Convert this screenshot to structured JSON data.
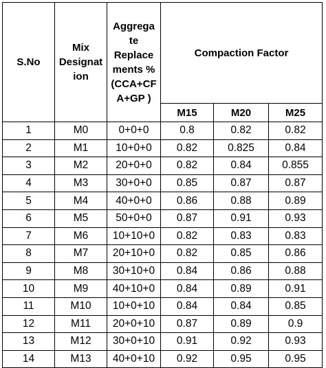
{
  "table": {
    "headers": {
      "sno": "S.No",
      "mix_lines": [
        "Mix",
        "Designat",
        "ion"
      ],
      "aggregate_lines": [
        "Aggrega",
        "te",
        "Replace",
        "ments %",
        "(CCA+CF",
        "A+GP )"
      ],
      "compaction": "Compaction Factor",
      "grades": [
        "M15",
        "M20",
        "M25"
      ]
    },
    "rows": [
      [
        "1",
        "M0",
        "0+0+0",
        "0.8",
        "0.82",
        "0.82"
      ],
      [
        "2",
        "M1",
        "10+0+0",
        "0.82",
        "0.825",
        "0.84"
      ],
      [
        "3",
        "M2",
        "20+0+0",
        "0.82",
        "0.84",
        "0.855"
      ],
      [
        "4",
        "M3",
        "30+0+0",
        "0.85",
        "0.87",
        "0.87"
      ],
      [
        "5",
        "M4",
        "40+0+0",
        "0.86",
        "0.88",
        "0.89"
      ],
      [
        "6",
        "M5",
        "50+0+0",
        "0.87",
        "0.91",
        "0.93"
      ],
      [
        "7",
        "M6",
        "10+10+0",
        "0.82",
        "0.83",
        "0.83"
      ],
      [
        "8",
        "M7",
        "20+10+0",
        "0.82",
        "0.85",
        "0.86"
      ],
      [
        "9",
        "M8",
        "30+10+0",
        "0.84",
        "0.86",
        "0.88"
      ],
      [
        "10",
        "M9",
        "40+10+0",
        "0.84",
        "0.89",
        "0.91"
      ],
      [
        "11",
        "M10",
        "10+0+10",
        "0.84",
        "0.84",
        "0.85"
      ],
      [
        "12",
        "M11",
        "20+0+10",
        "0.87",
        "0.89",
        "0.9"
      ],
      [
        "13",
        "M12",
        "30+0+10",
        "0.91",
        "0.92",
        "0.93"
      ],
      [
        "14",
        "M13",
        "40+0+10",
        "0.92",
        "0.95",
        "0.95"
      ]
    ]
  }
}
